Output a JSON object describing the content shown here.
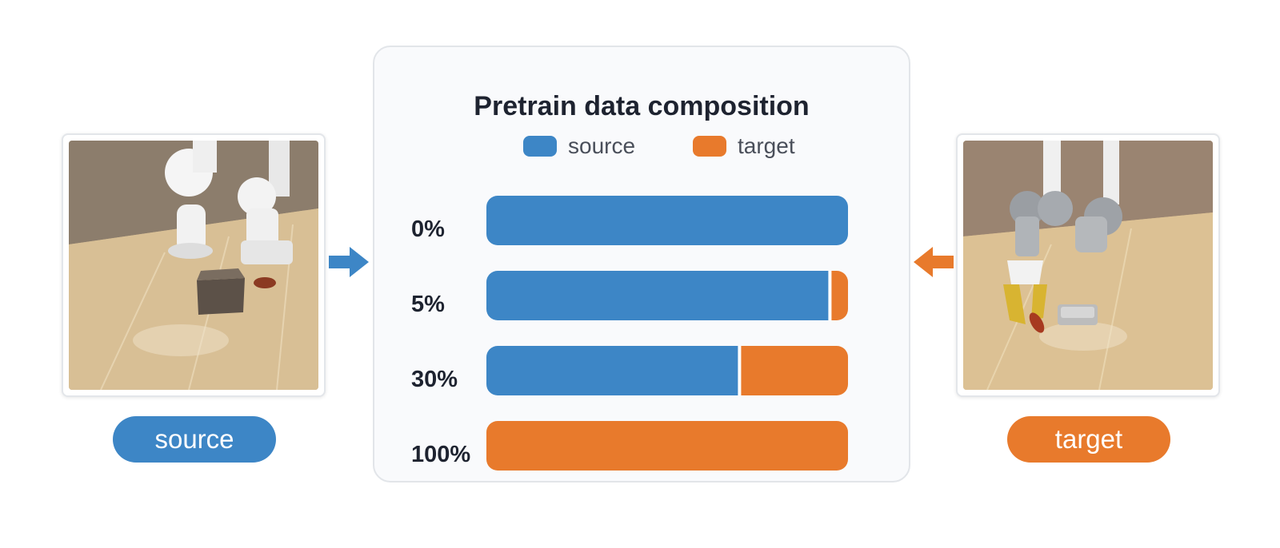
{
  "colors": {
    "source": "#3d86c6",
    "target": "#e87a2c"
  },
  "left_panel": {
    "label": "source",
    "image": "robot-arm-scene-source"
  },
  "right_panel": {
    "label": "target",
    "image": "robot-arm-scene-target"
  },
  "chart_data": {
    "type": "bar",
    "orientation": "horizontal",
    "stacked": true,
    "title": "Pretrain data composition",
    "categories": [
      "0%",
      "5%",
      "30%",
      "100%"
    ],
    "series": [
      {
        "name": "source",
        "values": [
          100,
          95,
          70,
          0
        ]
      },
      {
        "name": "target",
        "values": [
          0,
          5,
          30,
          100
        ]
      }
    ],
    "xlim": [
      0,
      100
    ],
    "legend": "top-center",
    "grid": false
  }
}
